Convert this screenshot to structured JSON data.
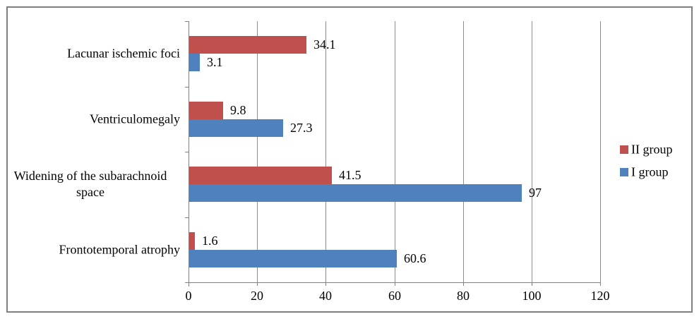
{
  "figure": {
    "background": "#FFFFFF",
    "border_color": "#808080"
  },
  "chart_data": {
    "type": "bar",
    "orientation": "horizontal",
    "title": "",
    "categories": [
      "Lacunar ischemic foci",
      "Ventriculomegaly",
      "Widening of the subarachnoid space",
      "Frontotemporal atrophy"
    ],
    "series": [
      {
        "name": "II group",
        "color": "#C0504D",
        "values": [
          34.1,
          9.8,
          41.5,
          1.6
        ],
        "value_labels": [
          "34.1",
          "9.8",
          "41.5",
          "1.6"
        ]
      },
      {
        "name": "I group",
        "color": "#4F81BD",
        "values": [
          3.1,
          27.3,
          97,
          60.6
        ],
        "value_labels": [
          "3.1",
          "27.3",
          "97",
          "60.6"
        ]
      }
    ],
    "xlim": [
      0,
      120
    ],
    "xticks": [
      0,
      20,
      40,
      60,
      80,
      100,
      120
    ],
    "xtick_labels": [
      "0",
      "20",
      "40",
      "60",
      "80",
      "100",
      "120"
    ],
    "grid": "vertical-major",
    "legend_position": "right-middle",
    "axis_color": "#808080",
    "gridline_color": "#8E8E8E",
    "text_color": "#000000"
  }
}
